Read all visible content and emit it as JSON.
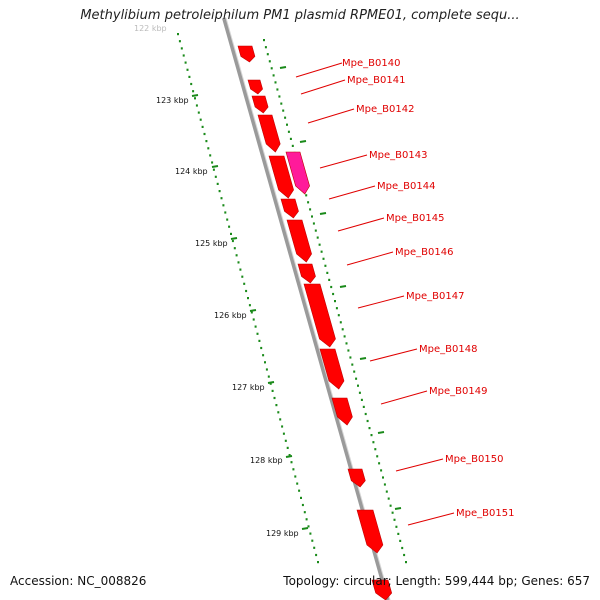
{
  "title": "Methylibium petroleiphilum PM1 plasmid RPME01, complete sequ...",
  "footer": {
    "accession": "Accession: NC_008826",
    "summary": "Topology: circular; Length: 599,444 bp; Genes: 657"
  },
  "colors": {
    "gene": "#ff0000",
    "gene_highlight": "#ff1a9a",
    "tick": "#1a8a1a",
    "backbone": "#888888",
    "label": "#e00000"
  },
  "kbp_labels": [
    "122 kbp",
    "123 kbp",
    "124 kbp",
    "125 kbp",
    "126 kbp",
    "127 kbp",
    "128 kbp",
    "129 kbp"
  ],
  "gene_labels": [
    "Mpe_B0140",
    "Mpe_B0141",
    "Mpe_B0142",
    "Mpe_B0143",
    "Mpe_B0144",
    "Mpe_B0145",
    "Mpe_B0146",
    "Mpe_B0147",
    "Mpe_B0148",
    "Mpe_B0149",
    "Mpe_B0150",
    "Mpe_B0151"
  ]
}
